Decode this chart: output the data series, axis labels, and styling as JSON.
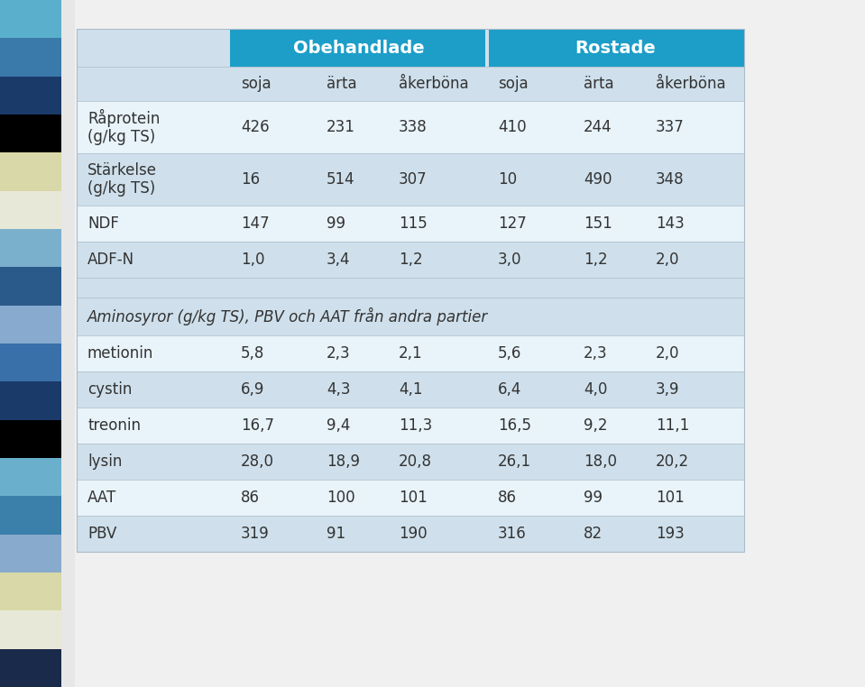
{
  "header_row1_obehandlade": "Obehandlade",
  "header_row1_rostade": "Rostade",
  "sub_headers": [
    "",
    "soja",
    "ärta",
    "åkerböna",
    "soja",
    "ärta",
    "åkerböna"
  ],
  "rows": [
    [
      "Råprotein\n(g/kg TS)",
      "426",
      "231",
      "338",
      "410",
      "244",
      "337"
    ],
    [
      "Stärkelse\n(g/kg TS)",
      "16",
      "514",
      "307",
      "10",
      "490",
      "348"
    ],
    [
      "NDF",
      "147",
      "99",
      "115",
      "127",
      "151",
      "143"
    ],
    [
      "ADF-N",
      "1,0",
      "3,4",
      "1,2",
      "3,0",
      "1,2",
      "2,0"
    ],
    [
      "",
      "",
      "",
      "",
      "",
      "",
      ""
    ],
    [
      "Aminosyror (g/kg TS), PBV och AAT från andra partier",
      "",
      "",
      "",
      "",
      "",
      ""
    ],
    [
      "metionin",
      "5,8",
      "2,3",
      "2,1",
      "5,6",
      "2,3",
      "2,0"
    ],
    [
      "cystin",
      "6,9",
      "4,3",
      "4,1",
      "6,4",
      "4,0",
      "3,9"
    ],
    [
      "treonin",
      "16,7",
      "9,4",
      "11,3",
      "16,5",
      "9,2",
      "11,1"
    ],
    [
      "lysin",
      "28,0",
      "18,9",
      "20,8",
      "26,1",
      "18,0",
      "20,2"
    ],
    [
      "AAT",
      "86",
      "100",
      "101",
      "86",
      "99",
      "101"
    ],
    [
      "PBV",
      "319",
      "91",
      "190",
      "316",
      "82",
      "193"
    ]
  ],
  "color_header_teal": "#1c9ec8",
  "color_alt_row": "#cfe0ec",
  "color_white_row": "#e8f3fa",
  "color_header_text": "#ffffff",
  "color_body_text": "#333333",
  "strip_colors": [
    "#5ab0cc",
    "#3a7aaa",
    "#1a3a6a",
    "#000000",
    "#d8d8a8",
    "#e8e8d8",
    "#7ab0cc",
    "#2a5a8a",
    "#88aace",
    "#3a70aa",
    "#1a3a6a",
    "#000000",
    "#6ab0cc",
    "#3a80aa",
    "#88aacc",
    "#d8d8a8",
    "#e8e8d8",
    "#1a2a4a"
  ],
  "fig_width": 9.59,
  "fig_height": 7.62,
  "dpi": 100
}
